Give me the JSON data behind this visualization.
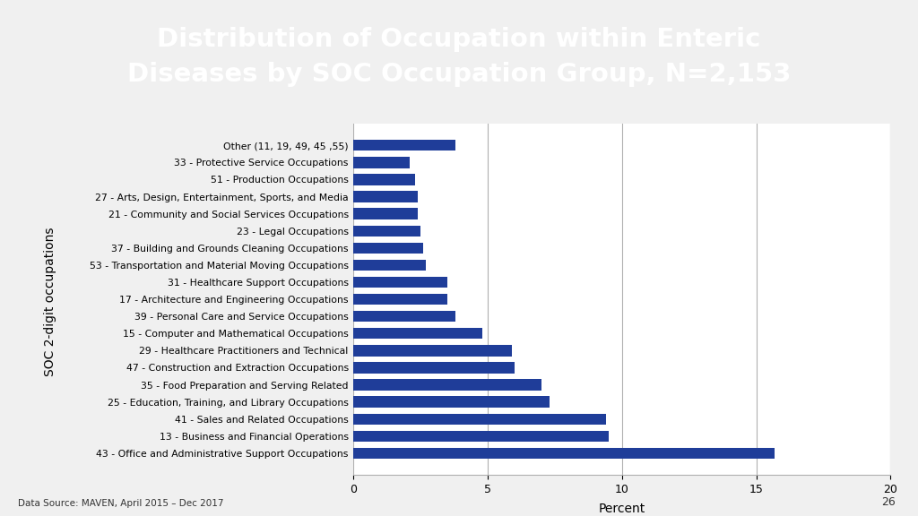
{
  "title": "Distribution of Occupation within Enteric\nDiseases by SOC Occupation Group, N=2,153",
  "title_bg_color": "#1b7fa0",
  "title_text_color": "#ffffff",
  "ylabel": "SOC 2-digit occupations",
  "xlabel": "Percent",
  "footnote": "Data Source: MAVEN, April 2015 – Dec 2017",
  "slide_number": "26",
  "bar_color": "#1f3d99",
  "xlim": [
    0,
    20
  ],
  "xticks": [
    0,
    5,
    10,
    15,
    20
  ],
  "categories": [
    "43 - Office and Administrative Support Occupations",
    "13 - Business and Financial Operations",
    "41 - Sales and Related Occupations",
    "25 - Education, Training, and Library Occupations",
    "35 - Food Preparation and Serving Related",
    "47 - Construction and Extraction Occupations",
    "29 - Healthcare Practitioners and Technical",
    "15 - Computer and Mathematical Occupations",
    "39 - Personal Care and Service Occupations",
    "17 - Architecture and Engineering Occupations",
    "31 - Healthcare Support Occupations",
    "53 - Transportation and Material Moving Occupations",
    "37 - Building and Grounds Cleaning Occupations",
    "23 - Legal Occupations",
    "21 - Community and Social Services Occupations",
    "27 - Arts, Design, Entertainment, Sports, and Media",
    "51 - Production Occupations",
    "33 - Protective Service Occupations",
    "Other (11, 19, 49, 45 ,55)"
  ],
  "values": [
    15.7,
    9.5,
    9.4,
    7.3,
    7.0,
    6.0,
    5.9,
    4.8,
    3.8,
    3.5,
    3.5,
    2.7,
    2.6,
    2.5,
    2.4,
    2.4,
    2.3,
    2.1,
    3.8
  ],
  "bg_color": "#f0f0f0",
  "chart_bg_color": "#ffffff"
}
